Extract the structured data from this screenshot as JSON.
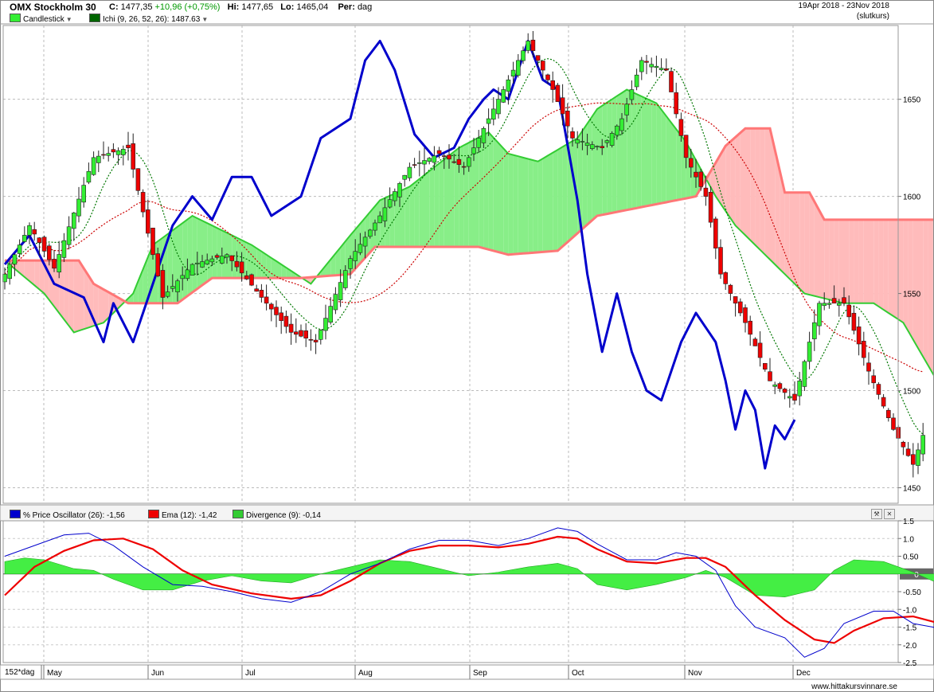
{
  "header": {
    "title": "OMX Stockholm 30",
    "close_label": "C:",
    "close_value": "1477,35",
    "change": "+10,96 (+0,75%)",
    "high_label": "Hi:",
    "high_value": "1477,65",
    "low_label": "Lo:",
    "low_value": "1465,04",
    "period_label": "Per:",
    "period_value": "dag",
    "date_range": "19Apr 2018 - 23Nov 2018",
    "price_mode": "(slutkurs)"
  },
  "legend_top": {
    "candles": {
      "label": "Candlestick",
      "color": "#33ee33"
    },
    "ichi": {
      "label": "Ichi (9, 26, 52, 26): 1487.63",
      "color": "#006600"
    }
  },
  "legend_bottom": {
    "osc": {
      "label": "% Price Oscillator (26): -1,56",
      "color": "#0000cc"
    },
    "ema": {
      "label": "Ema (12): -1,42",
      "color": "#ee0000"
    },
    "div": {
      "label": "Divergence (9): -0,14",
      "color": "#33cc33"
    }
  },
  "footer": {
    "period_box": "152*dag",
    "watermark": "www.hittakursvinnare.se"
  },
  "colors": {
    "up": "#33ee33",
    "down": "#ee0000",
    "cloud_bull": "#88ee88",
    "cloud_bear": "#ffbbbb",
    "tenkan": "#cc0000",
    "kijun_span_a": "#33cc33",
    "span_b": "#ff7777",
    "overlay": "#0000cc",
    "chikou": "#007700"
  },
  "chart_data": [
    {
      "type": "candlestick",
      "x_months": [
        "May",
        "Jun",
        "Jul",
        "Aug",
        "Sep",
        "Oct",
        "Nov",
        "Dec"
      ],
      "y_ticks": [
        1450,
        1500,
        1550,
        1600,
        1650
      ],
      "ylim": [
        1442,
        1688
      ],
      "grid": true,
      "close_anchors": [
        [
          0,
          1560
        ],
        [
          5,
          1585
        ],
        [
          10,
          1563
        ],
        [
          18,
          1620
        ],
        [
          25,
          1625
        ],
        [
          32,
          1548
        ],
        [
          38,
          1565
        ],
        [
          45,
          1570
        ],
        [
          52,
          1548
        ],
        [
          58,
          1530
        ],
        [
          63,
          1525
        ],
        [
          70,
          1568
        ],
        [
          76,
          1590
        ],
        [
          82,
          1615
        ],
        [
          88,
          1622
        ],
        [
          93,
          1615
        ],
        [
          99,
          1645
        ],
        [
          106,
          1680
        ],
        [
          111,
          1655
        ],
        [
          115,
          1630
        ],
        [
          121,
          1625
        ],
        [
          125,
          1640
        ],
        [
          129,
          1670
        ],
        [
          134,
          1665
        ],
        [
          138,
          1620
        ],
        [
          142,
          1600
        ],
        [
          145,
          1560
        ],
        [
          150,
          1535
        ],
        [
          155,
          1505
        ],
        [
          160,
          1495
        ],
        [
          165,
          1545
        ],
        [
          170,
          1545
        ],
        [
          175,
          1510
        ],
        [
          180,
          1480
        ],
        [
          184,
          1462
        ],
        [
          186,
          1477
        ]
      ],
      "cloud_span_a": [
        [
          0,
          1567
        ],
        [
          8,
          1550
        ],
        [
          14,
          1530
        ],
        [
          20,
          1535
        ],
        [
          26,
          1550
        ],
        [
          30,
          1575
        ],
        [
          38,
          1590
        ],
        [
          42,
          1585
        ],
        [
          50,
          1575
        ],
        [
          56,
          1565
        ],
        [
          62,
          1555
        ],
        [
          70,
          1580
        ],
        [
          76,
          1598
        ],
        [
          82,
          1605
        ],
        [
          92,
          1625
        ],
        [
          98,
          1633
        ],
        [
          102,
          1622
        ],
        [
          108,
          1618
        ],
        [
          116,
          1630
        ],
        [
          120,
          1645
        ],
        [
          126,
          1655
        ],
        [
          132,
          1648
        ],
        [
          138,
          1628
        ],
        [
          144,
          1600
        ],
        [
          148,
          1585
        ],
        [
          156,
          1565
        ],
        [
          162,
          1550
        ],
        [
          170,
          1545
        ],
        [
          176,
          1545
        ],
        [
          182,
          1535
        ],
        [
          190,
          1500
        ],
        [
          199,
          1495
        ]
      ],
      "cloud_span_b": [
        [
          0,
          1567
        ],
        [
          15,
          1567
        ],
        [
          18,
          1555
        ],
        [
          25,
          1545
        ],
        [
          35,
          1545
        ],
        [
          42,
          1558
        ],
        [
          60,
          1558
        ],
        [
          70,
          1560
        ],
        [
          75,
          1574
        ],
        [
          90,
          1574
        ],
        [
          96,
          1574
        ],
        [
          102,
          1570
        ],
        [
          112,
          1572
        ],
        [
          120,
          1590
        ],
        [
          132,
          1596
        ],
        [
          140,
          1600
        ],
        [
          146,
          1626
        ],
        [
          150,
          1635
        ],
        [
          155,
          1635
        ],
        [
          158,
          1602
        ],
        [
          163,
          1602
        ],
        [
          166,
          1588
        ],
        [
          180,
          1588
        ],
        [
          190,
          1588
        ],
        [
          195,
          1565
        ],
        [
          199,
          1565
        ]
      ],
      "overlay_line": [
        [
          0,
          1565
        ],
        [
          5,
          1580
        ],
        [
          10,
          1555
        ],
        [
          16,
          1548
        ],
        [
          20,
          1525
        ],
        [
          22,
          1545
        ],
        [
          26,
          1525
        ],
        [
          30,
          1555
        ],
        [
          34,
          1585
        ],
        [
          38,
          1600
        ],
        [
          42,
          1588
        ],
        [
          46,
          1610
        ],
        [
          50,
          1610
        ],
        [
          54,
          1590
        ],
        [
          60,
          1600
        ],
        [
          64,
          1630
        ],
        [
          70,
          1640
        ],
        [
          73,
          1670
        ],
        [
          76,
          1680
        ],
        [
          79,
          1665
        ],
        [
          83,
          1632
        ],
        [
          87,
          1620
        ],
        [
          91,
          1625
        ],
        [
          94,
          1640
        ],
        [
          97,
          1650
        ],
        [
          99,
          1655
        ],
        [
          102,
          1650
        ],
        [
          106,
          1680
        ],
        [
          109,
          1660
        ],
        [
          112,
          1655
        ],
        [
          116,
          1598
        ],
        [
          118,
          1560
        ],
        [
          121,
          1520
        ],
        [
          124,
          1550
        ],
        [
          127,
          1520
        ],
        [
          130,
          1500
        ],
        [
          133,
          1495
        ],
        [
          137,
          1525
        ],
        [
          140,
          1540
        ],
        [
          144,
          1525
        ],
        [
          146,
          1505
        ],
        [
          148,
          1480
        ],
        [
          150,
          1500
        ],
        [
          152,
          1490
        ],
        [
          154,
          1460
        ],
        [
          156,
          1482
        ],
        [
          158,
          1475
        ],
        [
          160,
          1485
        ]
      ]
    },
    {
      "type": "line",
      "series": [
        {
          "name": "% Price Oscillator (26)",
          "last": -1.56,
          "values": [
            [
              0,
              0.5
            ],
            [
              6,
              0.8
            ],
            [
              12,
              1.1
            ],
            [
              17,
              1.15
            ],
            [
              22,
              0.8
            ],
            [
              28,
              0.2
            ],
            [
              34,
              -0.3
            ],
            [
              40,
              -0.35
            ],
            [
              46,
              -0.5
            ],
            [
              52,
              -0.7
            ],
            [
              58,
              -0.8
            ],
            [
              64,
              -0.5
            ],
            [
              70,
              0.0
            ],
            [
              76,
              0.3
            ],
            [
              82,
              0.7
            ],
            [
              88,
              0.95
            ],
            [
              94,
              0.95
            ],
            [
              100,
              0.8
            ],
            [
              106,
              1.0
            ],
            [
              112,
              1.3
            ],
            [
              116,
              1.2
            ],
            [
              120,
              0.85
            ],
            [
              126,
              0.4
            ],
            [
              132,
              0.4
            ],
            [
              136,
              0.6
            ],
            [
              140,
              0.5
            ],
            [
              144,
              0.1
            ],
            [
              148,
              -0.9
            ],
            [
              152,
              -1.5
            ],
            [
              158,
              -1.8
            ],
            [
              162,
              -2.35
            ],
            [
              166,
              -2.1
            ],
            [
              170,
              -1.4
            ],
            [
              176,
              -1.05
            ],
            [
              180,
              -1.05
            ],
            [
              184,
              -1.4
            ],
            [
              188,
              -1.5
            ],
            [
              190,
              -1.56
            ]
          ]
        },
        {
          "name": "Ema (12)",
          "last": -1.42,
          "values": [
            [
              0,
              -0.6
            ],
            [
              6,
              0.2
            ],
            [
              12,
              0.65
            ],
            [
              18,
              0.95
            ],
            [
              24,
              1.0
            ],
            [
              30,
              0.7
            ],
            [
              36,
              0.1
            ],
            [
              42,
              -0.3
            ],
            [
              50,
              -0.55
            ],
            [
              58,
              -0.7
            ],
            [
              64,
              -0.6
            ],
            [
              70,
              -0.2
            ],
            [
              76,
              0.3
            ],
            [
              82,
              0.65
            ],
            [
              88,
              0.8
            ],
            [
              94,
              0.8
            ],
            [
              100,
              0.75
            ],
            [
              106,
              0.85
            ],
            [
              112,
              1.05
            ],
            [
              116,
              1.0
            ],
            [
              120,
              0.7
            ],
            [
              126,
              0.35
            ],
            [
              132,
              0.3
            ],
            [
              138,
              0.45
            ],
            [
              142,
              0.45
            ],
            [
              146,
              0.2
            ],
            [
              152,
              -0.6
            ],
            [
              158,
              -1.3
            ],
            [
              164,
              -1.85
            ],
            [
              168,
              -1.95
            ],
            [
              172,
              -1.6
            ],
            [
              178,
              -1.25
            ],
            [
              184,
              -1.2
            ],
            [
              190,
              -1.42
            ]
          ]
        }
      ],
      "histogram": {
        "name": "Divergence (9)",
        "last": -0.14,
        "values": [
          [
            0,
            0.35
          ],
          [
            4,
            0.45
          ],
          [
            8,
            0.4
          ],
          [
            14,
            0.15
          ],
          [
            18,
            0.1
          ],
          [
            22,
            -0.15
          ],
          [
            28,
            -0.45
          ],
          [
            34,
            -0.45
          ],
          [
            40,
            -0.2
          ],
          [
            46,
            -0.05
          ],
          [
            52,
            -0.2
          ],
          [
            58,
            -0.25
          ],
          [
            64,
            0.0
          ],
          [
            70,
            0.2
          ],
          [
            76,
            0.4
          ],
          [
            82,
            0.35
          ],
          [
            88,
            0.15
          ],
          [
            94,
            -0.05
          ],
          [
            100,
            0.05
          ],
          [
            106,
            0.2
          ],
          [
            112,
            0.3
          ],
          [
            116,
            0.15
          ],
          [
            120,
            -0.3
          ],
          [
            126,
            -0.45
          ],
          [
            132,
            -0.3
          ],
          [
            138,
            -0.1
          ],
          [
            142,
            0.1
          ],
          [
            146,
            -0.1
          ],
          [
            152,
            -0.6
          ],
          [
            158,
            -0.65
          ],
          [
            164,
            -0.45
          ],
          [
            168,
            0.1
          ],
          [
            172,
            0.4
          ],
          [
            178,
            0.35
          ],
          [
            184,
            0.05
          ],
          [
            188,
            -0.2
          ],
          [
            190,
            -0.14
          ]
        ]
      },
      "y_ticks": [
        "1.5",
        "1.0",
        "0.50",
        "0",
        "-0.50",
        "-1.0",
        "-1.5",
        "-2.0",
        "-2.5"
      ],
      "ylim": [
        -2.5,
        1.5
      ],
      "zero_label": "0"
    }
  ]
}
